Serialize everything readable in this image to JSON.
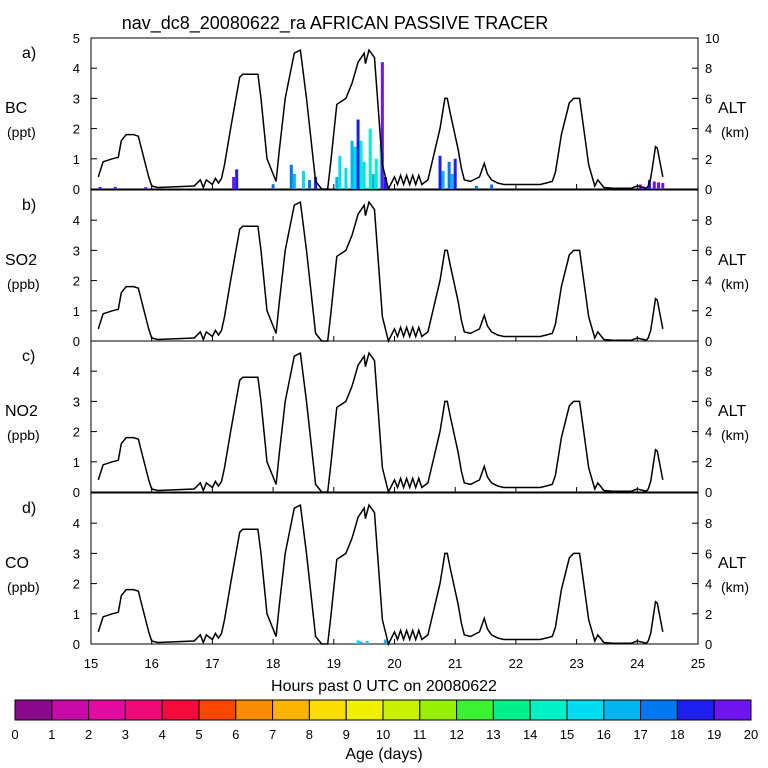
{
  "chart_data": {
    "type": "area",
    "title": "nav_dc8_20080622_ra AFRICAN PASSIVE TRACER",
    "xlabel": "Hours past 0 UTC on 20080622",
    "xlim": [
      15,
      25
    ],
    "x_ticks": [
      "15",
      "16",
      "17",
      "18",
      "19",
      "20",
      "21",
      "22",
      "23",
      "24",
      "25"
    ],
    "right_axis": {
      "label": "ALT",
      "unit": "(km)",
      "ylim": [
        0,
        10
      ],
      "ticks_top_panel": [
        "0",
        "2",
        "4",
        "6",
        "8",
        "10"
      ],
      "ticks_other_panels": [
        "0",
        "2",
        "4",
        "6",
        "8"
      ]
    },
    "panels": [
      {
        "letter": "a)",
        "species": "BC",
        "unit": "(ppt)",
        "ylim": [
          0,
          5
        ],
        "y_ticks": [
          "0",
          "1",
          "2",
          "3",
          "4",
          "5"
        ]
      },
      {
        "letter": "b)",
        "species": "SO2",
        "unit": "(ppb)",
        "ylim": [
          0,
          5
        ],
        "y_ticks": [
          "0",
          "1",
          "2",
          "3",
          "4"
        ]
      },
      {
        "letter": "c)",
        "species": "NO2",
        "unit": "(ppb)",
        "ylim": [
          0,
          5
        ],
        "y_ticks": [
          "0",
          "1",
          "2",
          "3",
          "4"
        ]
      },
      {
        "letter": "d)",
        "species": "CO",
        "unit": "(ppb)",
        "ylim": [
          0,
          5
        ],
        "y_ticks": [
          "0",
          "1",
          "2",
          "3",
          "4"
        ]
      }
    ],
    "altitude_km": {
      "x": [
        15.12,
        15.2,
        15.35,
        15.45,
        15.5,
        15.58,
        15.7,
        15.78,
        15.95,
        16.0,
        16.1,
        16.4,
        16.7,
        16.8,
        16.85,
        16.9,
        17.0,
        17.05,
        17.1,
        17.15,
        17.2,
        17.3,
        17.45,
        17.5,
        17.6,
        17.75,
        17.8,
        17.9,
        18.05,
        18.1,
        18.2,
        18.35,
        18.45,
        18.55,
        18.7,
        18.8,
        18.9,
        18.95,
        19.05,
        19.2,
        19.3,
        19.4,
        19.5,
        19.52,
        19.58,
        19.67,
        19.72,
        19.8,
        19.9,
        20.0,
        20.05,
        20.1,
        20.15,
        20.2,
        20.25,
        20.3,
        20.35,
        20.4,
        20.45,
        20.55,
        20.75,
        20.83,
        20.87,
        20.92,
        21.05,
        21.1,
        21.15,
        21.25,
        21.4,
        21.48,
        21.53,
        21.6,
        21.7,
        21.8,
        22.1,
        22.4,
        22.5,
        22.6,
        22.65,
        22.75,
        22.88,
        22.95,
        23.05,
        23.2,
        23.3,
        23.35,
        23.45,
        23.6,
        23.9,
        24.0,
        24.1,
        24.15,
        24.18,
        24.22,
        24.27,
        24.3,
        24.33,
        24.42
      ],
      "values": [
        0.8,
        1.8,
        2.0,
        2.1,
        3.2,
        3.6,
        3.6,
        3.5,
        0.8,
        0.2,
        0.1,
        0.15,
        0.2,
        0.6,
        0.1,
        0.6,
        0.3,
        0.7,
        0.4,
        0.7,
        1.6,
        4.0,
        7.4,
        7.6,
        7.6,
        7.6,
        6.0,
        2.0,
        0.5,
        2.5,
        6.0,
        9.0,
        9.2,
        6.0,
        0.5,
        0,
        0,
        1.8,
        5.6,
        6.0,
        7.0,
        8.4,
        9.0,
        8.3,
        9.2,
        8.7,
        6.0,
        1.6,
        0,
        0.8,
        0.3,
        0.9,
        0.3,
        0.9,
        0.3,
        0.9,
        0.3,
        0.9,
        0.3,
        0.6,
        4.0,
        6.0,
        6.0,
        5.0,
        2.6,
        1.4,
        0.6,
        0.5,
        0.8,
        1.7,
        1.0,
        0.6,
        0.4,
        0.3,
        0.3,
        0.3,
        0.4,
        0.5,
        1.1,
        3.6,
        5.7,
        6.0,
        6.0,
        1.6,
        0.2,
        0.6,
        0.1,
        0.05,
        0.05,
        0.2,
        0.1,
        0.05,
        0.2,
        0.7,
        2.0,
        2.8,
        2.7,
        0.8
      ]
    },
    "age_markers_panel_a": [
      {
        "x": 15.15,
        "v": 0.07,
        "age": 19
      },
      {
        "x": 15.4,
        "v": 0.07,
        "age": 19
      },
      {
        "x": 15.9,
        "v": 0.06,
        "age": 19
      },
      {
        "x": 17.35,
        "v": 0.4,
        "age": 19
      },
      {
        "x": 17.4,
        "v": 0.65,
        "age": 18
      },
      {
        "x": 18.0,
        "v": 0.15,
        "age": 17
      },
      {
        "x": 18.3,
        "v": 0.8,
        "age": 17
      },
      {
        "x": 18.35,
        "v": 0.5,
        "age": 16
      },
      {
        "x": 18.5,
        "v": 0.6,
        "age": 15
      },
      {
        "x": 18.6,
        "v": 0.3,
        "age": 17
      },
      {
        "x": 18.7,
        "v": 0.4,
        "age": 18
      },
      {
        "x": 19.05,
        "v": 0.4,
        "age": 16
      },
      {
        "x": 19.1,
        "v": 1.1,
        "age": 15
      },
      {
        "x": 19.2,
        "v": 0.7,
        "age": 15
      },
      {
        "x": 19.3,
        "v": 1.6,
        "age": 16
      },
      {
        "x": 19.35,
        "v": 1.4,
        "age": 15
      },
      {
        "x": 19.4,
        "v": 2.3,
        "age": 18
      },
      {
        "x": 19.45,
        "v": 1.6,
        "age": 14
      },
      {
        "x": 19.5,
        "v": 0.9,
        "age": 15
      },
      {
        "x": 19.6,
        "v": 2.0,
        "age": 14
      },
      {
        "x": 19.65,
        "v": 0.5,
        "age": 16
      },
      {
        "x": 19.7,
        "v": 1.0,
        "age": 14
      },
      {
        "x": 19.78,
        "v": 1.5,
        "age": 15
      },
      {
        "x": 19.8,
        "v": 4.2,
        "age": 19
      },
      {
        "x": 19.85,
        "v": 0.4,
        "age": 18
      },
      {
        "x": 20.75,
        "v": 1.1,
        "age": 18
      },
      {
        "x": 20.8,
        "v": 0.6,
        "age": 16
      },
      {
        "x": 20.9,
        "v": 0.9,
        "age": 17
      },
      {
        "x": 20.95,
        "v": 0.5,
        "age": 16
      },
      {
        "x": 21.0,
        "v": 1.0,
        "age": 18
      },
      {
        "x": 21.35,
        "v": 0.1,
        "age": 17
      },
      {
        "x": 21.6,
        "v": 0.15,
        "age": 17
      },
      {
        "x": 24.05,
        "v": 0.15,
        "age": 19
      },
      {
        "x": 24.1,
        "v": 0.08,
        "age": 19
      },
      {
        "x": 24.2,
        "v": 0.3,
        "age": 18
      },
      {
        "x": 24.28,
        "v": 0.25,
        "age": 19
      },
      {
        "x": 24.35,
        "v": 0.22,
        "age": 19
      },
      {
        "x": 24.42,
        "v": 0.2,
        "age": 19
      }
    ],
    "age_markers_panel_d": [
      {
        "x": 19.4,
        "v": 0.12,
        "age": 15
      },
      {
        "x": 19.45,
        "v": 0.08,
        "age": 16
      },
      {
        "x": 19.55,
        "v": 0.1,
        "age": 15
      },
      {
        "x": 19.85,
        "v": 0.15,
        "age": 16
      }
    ],
    "colorbar": {
      "label": "Age (days)",
      "ticks": [
        "0",
        "1",
        "2",
        "3",
        "4",
        "5",
        "6",
        "7",
        "8",
        "9",
        "10",
        "11",
        "12",
        "13",
        "14",
        "15",
        "16",
        "17",
        "18",
        "19",
        "20"
      ],
      "colors": [
        "#8b0a8b",
        "#c70aa6",
        "#e30aa0",
        "#f00a78",
        "#f50a3c",
        "#fa4600",
        "#fa8c00",
        "#fab400",
        "#fadc00",
        "#f0f000",
        "#c8f000",
        "#96f000",
        "#3cf032",
        "#00f08c",
        "#00f0c8",
        "#00dcf0",
        "#00b4f0",
        "#0078f0",
        "#1e1ef0",
        "#6e14f0"
      ]
    }
  }
}
